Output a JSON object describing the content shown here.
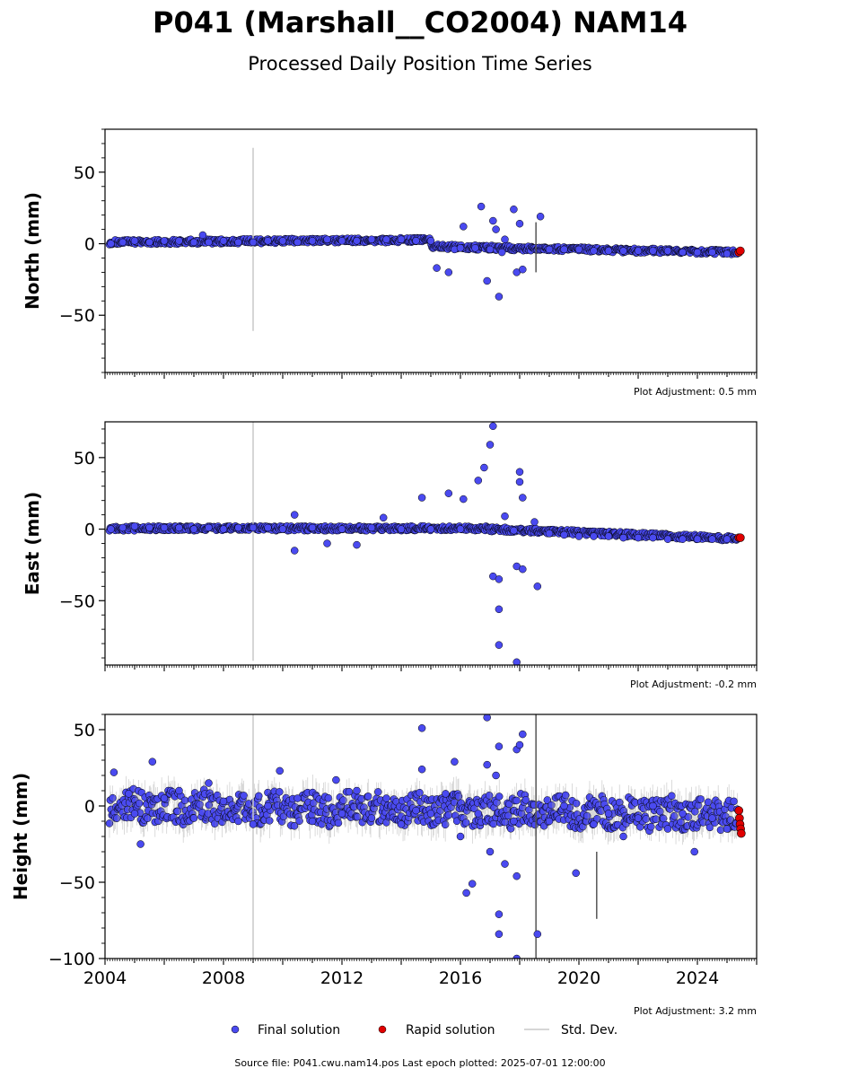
{
  "header": {
    "title": "P041 (Marshall__CO2004) NAM14",
    "subtitle": "Processed Daily Position Time Series"
  },
  "legend": {
    "final": "Final solution",
    "rapid": "Rapid solution",
    "std": "Std. Dev."
  },
  "footer": {
    "source": "Source file: P041.cwu.nam14.pos  Last epoch plotted: 2025-07-01 12:00:00"
  },
  "colors": {
    "final_fill": "#4a4af0",
    "rapid_fill": "#e00000",
    "marker_edge": "#000000",
    "std_line": "#c8c8c8"
  },
  "chart_data": [
    {
      "type": "scatter",
      "panel": "north",
      "ylabel": "North (mm)",
      "adjustment": "Plot Adjustment: 0.5 mm",
      "xlim": [
        2004.0,
        2026.0
      ],
      "ylim": [
        -90,
        80
      ],
      "yticks": [
        50,
        0,
        -50
      ],
      "ytick_labels": [
        "50",
        "0",
        "−50"
      ],
      "series": [
        {
          "name": "Final solution",
          "points": [
            [
              2004.2,
              0
            ],
            [
              2004.6,
              1
            ],
            [
              2005.0,
              2
            ],
            [
              2005.5,
              1
            ],
            [
              2006.0,
              2
            ],
            [
              2006.5,
              2
            ],
            [
              2007.0,
              1
            ],
            [
              2007.3,
              6
            ],
            [
              2007.5,
              1
            ],
            [
              2008.0,
              2
            ],
            [
              2008.5,
              1
            ],
            [
              2009.0,
              1
            ],
            [
              2009.5,
              2
            ],
            [
              2010.0,
              2
            ],
            [
              2010.5,
              1
            ],
            [
              2011.0,
              2
            ],
            [
              2011.5,
              3
            ],
            [
              2012.0,
              2
            ],
            [
              2012.5,
              2
            ],
            [
              2013.0,
              3
            ],
            [
              2013.5,
              3
            ],
            [
              2014.0,
              3
            ],
            [
              2014.5,
              2
            ],
            [
              2015.0,
              2
            ],
            [
              2015.2,
              -17
            ],
            [
              2015.6,
              -20
            ],
            [
              2015.8,
              -4
            ],
            [
              2016.0,
              -3
            ],
            [
              2016.1,
              12
            ],
            [
              2016.5,
              -3
            ],
            [
              2016.7,
              26
            ],
            [
              2016.9,
              -26
            ],
            [
              2017.0,
              -4
            ],
            [
              2017.1,
              16
            ],
            [
              2017.2,
              10
            ],
            [
              2017.3,
              -37
            ],
            [
              2017.4,
              -6
            ],
            [
              2017.5,
              3
            ],
            [
              2017.8,
              24
            ],
            [
              2017.9,
              -20
            ],
            [
              2018.0,
              14
            ],
            [
              2018.1,
              -18
            ],
            [
              2018.7,
              19
            ],
            [
              2019.0,
              -4
            ],
            [
              2019.5,
              -4
            ],
            [
              2020.0,
              -4
            ],
            [
              2020.5,
              -5
            ],
            [
              2021.0,
              -5
            ],
            [
              2021.5,
              -5
            ],
            [
              2022.0,
              -5
            ],
            [
              2022.5,
              -5
            ],
            [
              2023.0,
              -5
            ],
            [
              2023.5,
              -6
            ],
            [
              2024.0,
              -6
            ],
            [
              2024.5,
              -6
            ],
            [
              2025.0,
              -7
            ]
          ]
        },
        {
          "name": "Rapid solution",
          "points": [
            [
              2025.4,
              -6
            ],
            [
              2025.45,
              -5
            ]
          ]
        }
      ],
      "std_dev_spikes": [
        [
          2009.0,
          -61,
          67
        ],
        [
          2018.55,
          -20,
          15
        ]
      ]
    },
    {
      "type": "scatter",
      "panel": "east",
      "ylabel": "East (mm)",
      "adjustment": "Plot Adjustment: -0.2 mm",
      "xlim": [
        2004.0,
        2026.0
      ],
      "ylim": [
        -95,
        75
      ],
      "yticks": [
        50,
        0,
        -50
      ],
      "ytick_labels": [
        "50",
        "0",
        "−50"
      ],
      "series": [
        {
          "name": "Final solution",
          "points": [
            [
              2004.2,
              0
            ],
            [
              2004.6,
              1
            ],
            [
              2005.0,
              2
            ],
            [
              2005.5,
              1
            ],
            [
              2006.0,
              1
            ],
            [
              2006.5,
              1
            ],
            [
              2007.0,
              0
            ],
            [
              2007.5,
              1
            ],
            [
              2008.0,
              0
            ],
            [
              2008.5,
              1
            ],
            [
              2009.0,
              1
            ],
            [
              2009.5,
              1
            ],
            [
              2010.0,
              0
            ],
            [
              2010.4,
              10
            ],
            [
              2010.4,
              -15
            ],
            [
              2011.0,
              1
            ],
            [
              2011.5,
              -10
            ],
            [
              2012.0,
              0
            ],
            [
              2012.5,
              -11
            ],
            [
              2013.0,
              1
            ],
            [
              2013.4,
              8
            ],
            [
              2014.0,
              0
            ],
            [
              2014.7,
              22
            ],
            [
              2015.0,
              0
            ],
            [
              2015.6,
              25
            ],
            [
              2016.0,
              0
            ],
            [
              2016.1,
              21
            ],
            [
              2016.6,
              34
            ],
            [
              2016.8,
              43
            ],
            [
              2017.0,
              59
            ],
            [
              2017.1,
              72
            ],
            [
              2017.1,
              -33
            ],
            [
              2017.3,
              -35
            ],
            [
              2017.3,
              -56
            ],
            [
              2017.3,
              -81
            ],
            [
              2017.5,
              9
            ],
            [
              2017.8,
              -1
            ],
            [
              2017.9,
              -93
            ],
            [
              2017.9,
              -26
            ],
            [
              2018.0,
              40
            ],
            [
              2018.0,
              33
            ],
            [
              2018.1,
              22
            ],
            [
              2018.1,
              -28
            ],
            [
              2018.6,
              -40
            ],
            [
              2018.5,
              5
            ],
            [
              2019.0,
              -3
            ],
            [
              2019.5,
              -4
            ],
            [
              2020.0,
              -5
            ],
            [
              2020.5,
              -5
            ],
            [
              2021.0,
              -5
            ],
            [
              2021.5,
              -6
            ],
            [
              2022.0,
              -6
            ],
            [
              2022.5,
              -6
            ],
            [
              2023.0,
              -7
            ],
            [
              2023.5,
              -7
            ],
            [
              2024.0,
              -7
            ],
            [
              2024.5,
              -7
            ],
            [
              2025.0,
              -7
            ]
          ]
        },
        {
          "name": "Rapid solution",
          "points": [
            [
              2025.4,
              -6
            ],
            [
              2025.45,
              -6
            ]
          ]
        }
      ],
      "std_dev_spikes": [
        [
          2009.0,
          -92,
          75
        ]
      ]
    },
    {
      "type": "scatter",
      "panel": "height",
      "ylabel": "Height (mm)",
      "adjustment": "Plot Adjustment: 3.2 mm",
      "xlim": [
        2004.0,
        2026.0
      ],
      "ylim": [
        -100,
        60
      ],
      "yticks": [
        50,
        0,
        -50,
        -100
      ],
      "ytick_labels": [
        "50",
        "0",
        "−50",
        "−100"
      ],
      "xticks": [
        2004,
        2008,
        2012,
        2016,
        2020,
        2024
      ],
      "xtick_labels": [
        "2004",
        "2008",
        "2012",
        "2016",
        "2020",
        "2024"
      ],
      "series": [
        {
          "name": "Final solution",
          "points": [
            [
              2004.3,
              22
            ],
            [
              2004.8,
              8
            ],
            [
              2005.0,
              -5
            ],
            [
              2005.2,
              -25
            ],
            [
              2005.6,
              29
            ],
            [
              2006.0,
              5
            ],
            [
              2006.5,
              10
            ],
            [
              2007.0,
              -8
            ],
            [
              2007.5,
              15
            ],
            [
              2008.0,
              3
            ],
            [
              2008.5,
              -10
            ],
            [
              2009.0,
              -12
            ],
            [
              2009.5,
              0
            ],
            [
              2009.9,
              23
            ],
            [
              2010.5,
              5
            ],
            [
              2011.0,
              -10
            ],
            [
              2011.8,
              17
            ],
            [
              2012.0,
              -5
            ],
            [
              2012.5,
              10
            ],
            [
              2013.0,
              -8
            ],
            [
              2013.5,
              5
            ],
            [
              2014.0,
              -12
            ],
            [
              2014.5,
              -3
            ],
            [
              2014.7,
              51
            ],
            [
              2014.7,
              24
            ],
            [
              2015.0,
              -5
            ],
            [
              2015.5,
              8
            ],
            [
              2015.8,
              29
            ],
            [
              2016.0,
              -20
            ],
            [
              2016.2,
              -57
            ],
            [
              2016.4,
              -51
            ],
            [
              2016.6,
              -5
            ],
            [
              2016.9,
              58
            ],
            [
              2016.9,
              27
            ],
            [
              2017.0,
              -30
            ],
            [
              2017.2,
              20
            ],
            [
              2017.3,
              39
            ],
            [
              2017.3,
              -71
            ],
            [
              2017.3,
              -84
            ],
            [
              2017.5,
              -38
            ],
            [
              2017.8,
              -10
            ],
            [
              2017.9,
              -46
            ],
            [
              2017.9,
              -100
            ],
            [
              2017.9,
              37
            ],
            [
              2018.0,
              40
            ],
            [
              2018.1,
              47
            ],
            [
              2018.6,
              -84
            ],
            [
              2019.0,
              -10
            ],
            [
              2019.5,
              0
            ],
            [
              2019.9,
              -44
            ],
            [
              2020.5,
              -12
            ],
            [
              2021.0,
              -5
            ],
            [
              2021.5,
              -20
            ],
            [
              2022.0,
              -8
            ],
            [
              2022.5,
              0
            ],
            [
              2023.0,
              -15
            ],
            [
              2023.5,
              -5
            ],
            [
              2023.9,
              -30
            ],
            [
              2024.5,
              -8
            ],
            [
              2025.0,
              -15
            ]
          ]
        },
        {
          "name": "Rapid solution",
          "points": [
            [
              2025.4,
              -3
            ],
            [
              2025.42,
              -8
            ],
            [
              2025.44,
              -12
            ],
            [
              2025.46,
              -15
            ],
            [
              2025.48,
              -18
            ]
          ]
        }
      ],
      "std_dev_spikes": [
        [
          2009.0,
          -100,
          60
        ],
        [
          2018.55,
          -100,
          60
        ],
        [
          2020.6,
          -74,
          -30
        ]
      ]
    }
  ]
}
